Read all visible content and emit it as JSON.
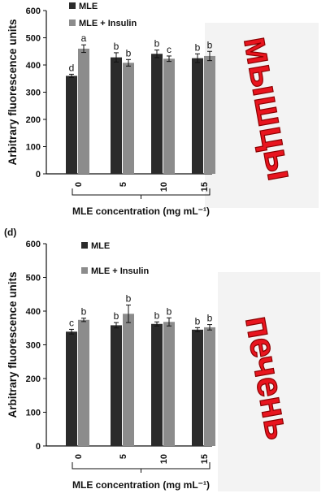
{
  "colors": {
    "mle": "#2b2b2b",
    "mle_insulin": "#8c8c8c",
    "axis": "#111111",
    "stamp": "#e8141e",
    "stamp_shadow": "#f1f1f1"
  },
  "stamps": {
    "top": "мышцы",
    "bottom": "печень"
  },
  "chart_data": [
    {
      "type": "bar",
      "panel_label": "",
      "categories": [
        "0",
        "5",
        "10",
        "15"
      ],
      "series": [
        {
          "name": "MLE",
          "values": [
            360,
            428,
            441,
            425
          ],
          "errors": [
            6,
            17,
            14,
            16
          ],
          "letters": [
            "d",
            "b",
            "b",
            "b"
          ]
        },
        {
          "name": "MLE + Insulin",
          "values": [
            460,
            408,
            423,
            433
          ],
          "errors": [
            14,
            12,
            10,
            17
          ],
          "letters": [
            "a",
            "b",
            "c",
            "b"
          ]
        }
      ],
      "ylabel": "Arbitrary fluorescence units",
      "xlabel": "MLE concentration (mg mL⁻¹)",
      "ylim": [
        0,
        600
      ],
      "yticks": [
        0,
        100,
        200,
        300,
        400,
        500,
        600
      ],
      "grid": false,
      "legend": "top-left"
    },
    {
      "type": "bar",
      "panel_label": "(d)",
      "categories": [
        "0",
        "5",
        "10",
        "15"
      ],
      "series": [
        {
          "name": "MLE",
          "values": [
            339,
            358,
            362,
            345
          ],
          "errors": [
            7,
            8,
            6,
            6
          ],
          "letters": [
            "c",
            "b",
            "b",
            "b"
          ]
        },
        {
          "name": "MLE + Insulin",
          "values": [
            374,
            392,
            368,
            352
          ],
          "errors": [
            5,
            26,
            12,
            8
          ],
          "letters": [
            "b",
            "b",
            "b",
            "b"
          ]
        }
      ],
      "ylabel": "Arbitrary fluorescence units",
      "xlabel": "MLE concentration (mg mL⁻¹)",
      "ylim": [
        0,
        600
      ],
      "yticks": [
        0,
        100,
        200,
        300,
        400,
        500,
        600
      ],
      "grid": false,
      "legend": "top-left"
    }
  ]
}
